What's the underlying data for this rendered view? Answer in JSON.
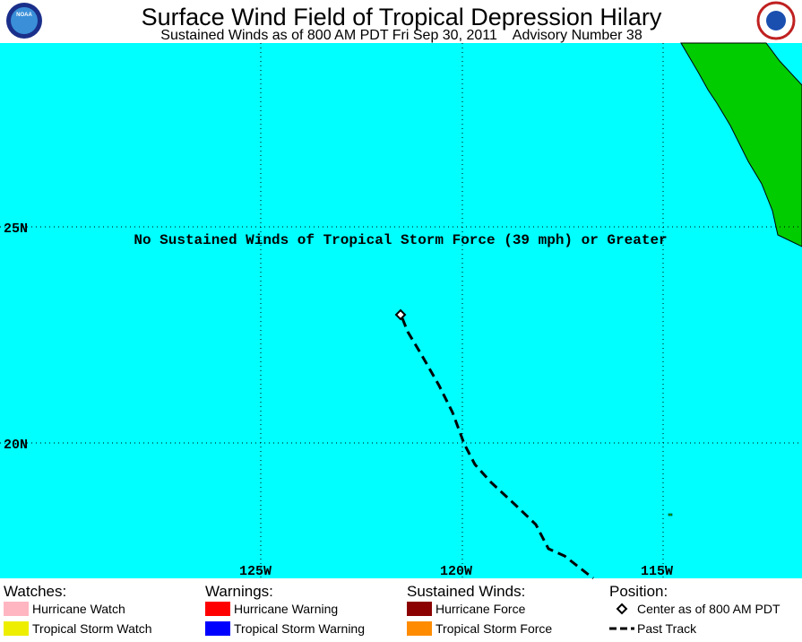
{
  "header": {
    "title": "Surface Wind Field of Tropical Depression Hilary",
    "subtitle": "Sustained Winds as of 800 AM PDT Fri Sep 30, 2011    Advisory Number 38",
    "logo_text": "NOAA"
  },
  "map": {
    "lat_labels": [
      "25N",
      "20N"
    ],
    "lon_labels": [
      "125W",
      "120W",
      "115W"
    ],
    "note": "No Sustained Winds of Tropical Storm Force (39 mph) or Greater"
  },
  "legend": [
    {
      "heading": "Watches:",
      "items": [
        "Hurricane Watch",
        "Tropical Storm Watch"
      ]
    },
    {
      "heading": "Warnings:",
      "items": [
        "Hurricane Warning",
        "Tropical Storm Warning"
      ]
    },
    {
      "heading": "Sustained Winds:",
      "items": [
        "Hurricane Force",
        "Tropical Storm Force"
      ]
    },
    {
      "heading": "Position:",
      "items": [
        "Center as of 800 AM PDT",
        "Past Track"
      ]
    }
  ]
}
